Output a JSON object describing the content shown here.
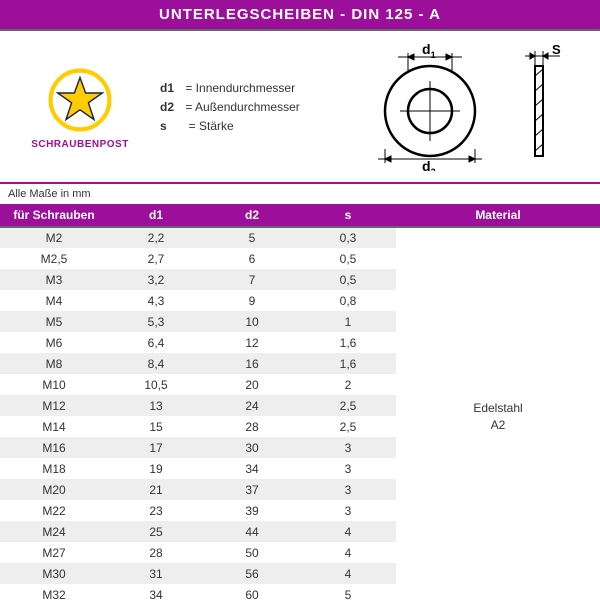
{
  "header": {
    "title": "UNTERLEGSCHEIBEN - DIN 125 - A"
  },
  "logo": {
    "text": "SCHRAUBENPOST"
  },
  "legend": {
    "d1_key": "d1",
    "d1_val": "= Innendurchmesser",
    "d2_key": "d2",
    "d2_val": "= Außendurchmesser",
    "s_key": "s",
    "s_val": "= Stärke"
  },
  "diagram": {
    "d1_label": "d",
    "d1_sub": "1",
    "d2_label": "d",
    "d2_sub": "2",
    "s_label": "S"
  },
  "units_note": "Alle Maße in mm",
  "table": {
    "columns": [
      "für Schrauben",
      "d1",
      "d2",
      "s",
      "Material"
    ],
    "col_widths": [
      "18%",
      "16%",
      "16%",
      "16%",
      "34%"
    ],
    "header_bg": "#9b0f9b",
    "header_fg": "#ffffff",
    "row_alt_bg": "#eeeeee",
    "material": {
      "line1": "Edelstahl",
      "line2": "A2"
    },
    "rows": [
      [
        "M2",
        "2,2",
        "5",
        "0,3"
      ],
      [
        "M2,5",
        "2,7",
        "6",
        "0,5"
      ],
      [
        "M3",
        "3,2",
        "7",
        "0,5"
      ],
      [
        "M4",
        "4,3",
        "9",
        "0,8"
      ],
      [
        "M5",
        "5,3",
        "10",
        "1"
      ],
      [
        "M6",
        "6,4",
        "12",
        "1,6"
      ],
      [
        "M8",
        "8,4",
        "16",
        "1,6"
      ],
      [
        "M10",
        "10,5",
        "20",
        "2"
      ],
      [
        "M12",
        "13",
        "24",
        "2,5"
      ],
      [
        "M14",
        "15",
        "28",
        "2,5"
      ],
      [
        "M16",
        "17",
        "30",
        "3"
      ],
      [
        "M18",
        "19",
        "34",
        "3"
      ],
      [
        "M20",
        "21",
        "37",
        "3"
      ],
      [
        "M22",
        "23",
        "39",
        "3"
      ],
      [
        "M24",
        "25",
        "44",
        "4"
      ],
      [
        "M27",
        "28",
        "50",
        "4"
      ],
      [
        "M30",
        "31",
        "56",
        "4"
      ],
      [
        "M32",
        "34",
        "60",
        "5"
      ]
    ]
  },
  "colors": {
    "brand": "#9b0f9b",
    "star_fill": "#ffcc00",
    "star_stroke": "#1a2340"
  }
}
